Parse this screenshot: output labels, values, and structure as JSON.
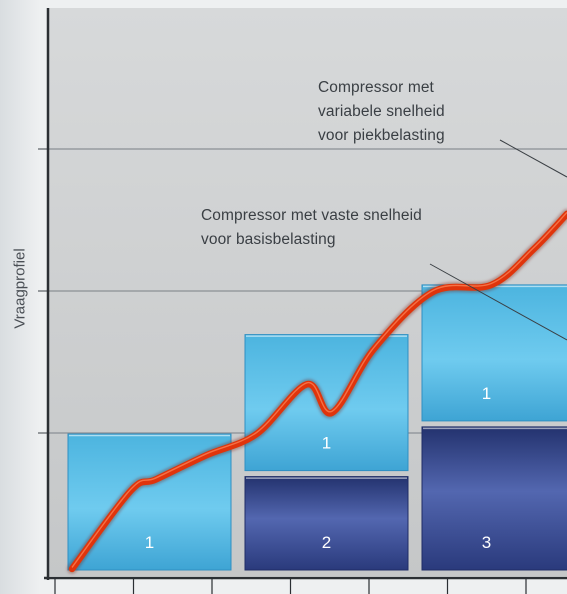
{
  "chart_data": {
    "type": "bar",
    "ylabel": "Vraagprofiel",
    "stacks": [
      {
        "segments": [
          {
            "label": "1",
            "role": "variable",
            "value": 1.0
          }
        ]
      },
      {
        "segments": [
          {
            "label": "2",
            "role": "fixed",
            "value": 0.7
          },
          {
            "label": "1",
            "role": "variable",
            "value": 1.0
          }
        ]
      },
      {
        "segments": [
          {
            "label": "3",
            "role": "fixed",
            "value": 1.05
          },
          {
            "label": "1",
            "role": "variable",
            "value": 1.0
          }
        ]
      }
    ],
    "demand_curve": [
      [
        0.0,
        0.05
      ],
      [
        0.7,
        0.6
      ],
      [
        1.0,
        0.68
      ],
      [
        1.6,
        0.85
      ],
      [
        2.2,
        1.0
      ],
      [
        2.8,
        1.35
      ],
      [
        3.1,
        1.15
      ],
      [
        3.6,
        1.6
      ],
      [
        4.3,
        2.0
      ],
      [
        5.0,
        2.05
      ],
      [
        5.5,
        2.3
      ],
      [
        5.9,
        2.55
      ]
    ],
    "ylim": [
      0,
      4
    ],
    "grid": true,
    "annotations": [
      {
        "lines": [
          "Compressor met",
          "variabele snelheid",
          "voor piekbelasting"
        ]
      },
      {
        "lines": [
          "Compressor met vaste snelheid",
          "voor basisbelasting"
        ]
      }
    ],
    "colors": {
      "variable": "#5bc1e8",
      "fixed": "#3a4f9a",
      "curve": "#e0340c",
      "grid": "#8a8f95",
      "plot_bg": "#c9cbcc"
    }
  }
}
